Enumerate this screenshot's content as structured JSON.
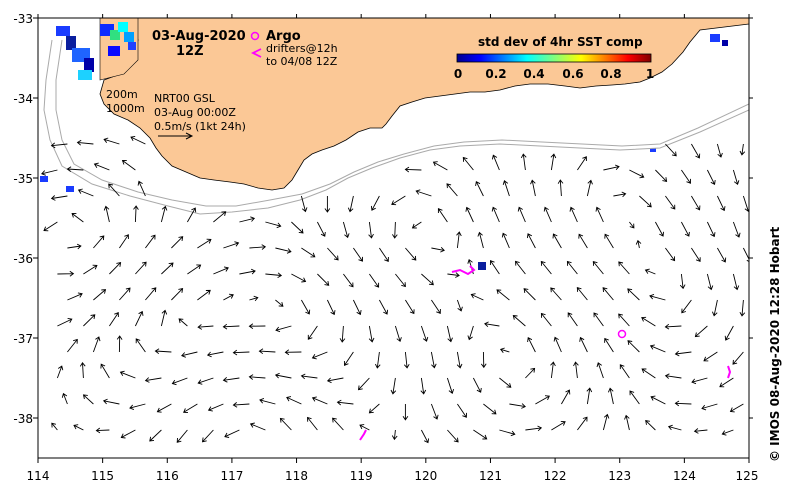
{
  "map": {
    "date": "03-Aug-2020",
    "hour": "12Z",
    "argo_label": "Argo",
    "drifters_label_1": "drifters@12h",
    "drifters_label_2": "to 04/08 12Z",
    "isobath_200": "200m",
    "isobath_1000": "1000m",
    "product_1": "NRT00 GSL",
    "product_2": "03-Aug 00:00Z",
    "scale_label": "0.5m/s (1kt 24h)",
    "colorbar_title": "std dev of 4hr SST comp",
    "colorbar_ticks": [
      "0",
      "0.2",
      "0.4",
      "0.6",
      "0.8",
      "1"
    ],
    "credit": "© IMOS 08-Aug-2020 12:28 Hobart",
    "lon_ticks": [
      "114",
      "115",
      "116",
      "117",
      "118",
      "119",
      "120",
      "121",
      "122",
      "123",
      "124",
      "125"
    ],
    "lat_ticks": [
      "-33",
      "-34",
      "-35",
      "-36",
      "-37",
      "-38"
    ],
    "land_color": "#fbc896",
    "drifter_color": "#ff00ff"
  }
}
